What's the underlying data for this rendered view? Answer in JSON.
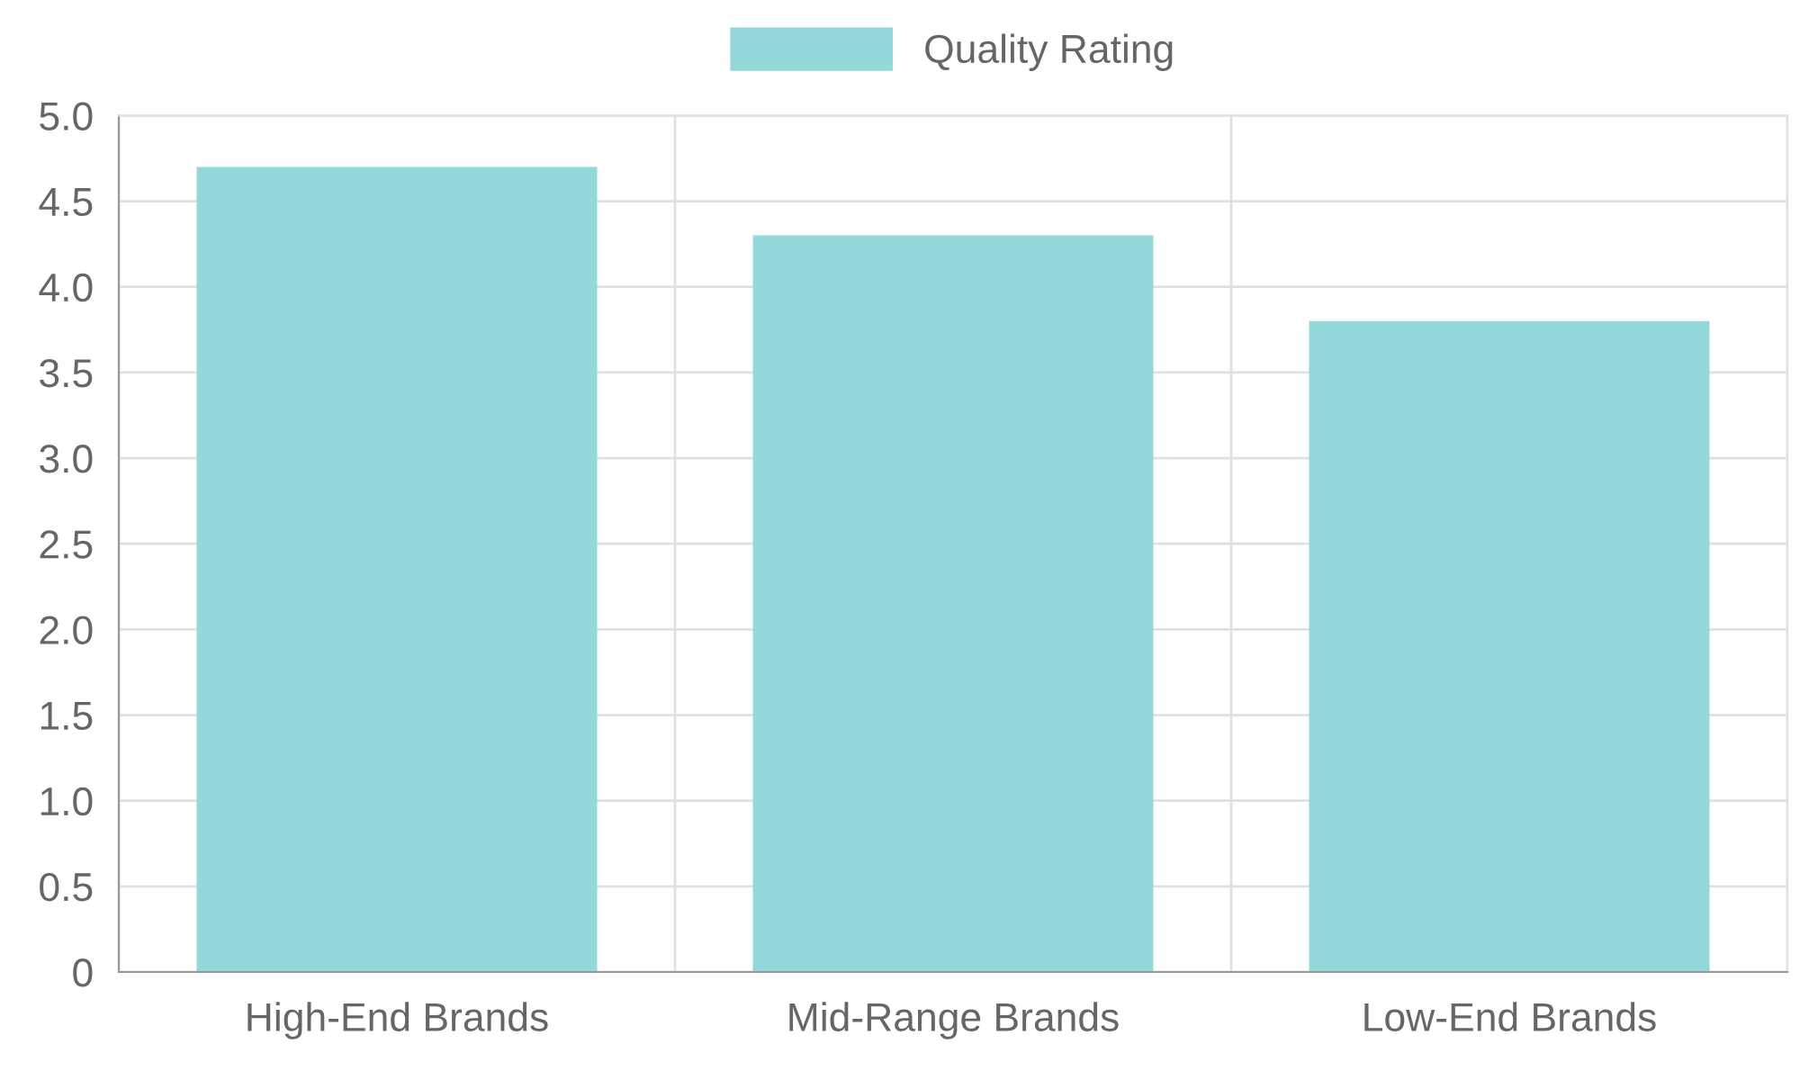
{
  "chart_data": {
    "type": "bar",
    "categories": [
      "High-End Brands",
      "Mid-Range Brands",
      "Low-End Brands"
    ],
    "series": [
      {
        "name": "Quality Rating",
        "color": "#93d9d9",
        "values": [
          4.7,
          4.3,
          3.8
        ]
      }
    ],
    "ylim": [
      0,
      5
    ],
    "yticks": [
      0,
      0.5,
      {
        "value": 1,
        "label": "1.0"
      },
      1.5,
      {
        "value": 2,
        "label": "2.0"
      },
      2.5,
      {
        "value": 3,
        "label": "3.0"
      },
      3.5,
      {
        "value": 4,
        "label": "4.0"
      },
      4.5,
      {
        "value": 5,
        "label": "5.0"
      }
    ],
    "grid": true,
    "legend": "top"
  }
}
